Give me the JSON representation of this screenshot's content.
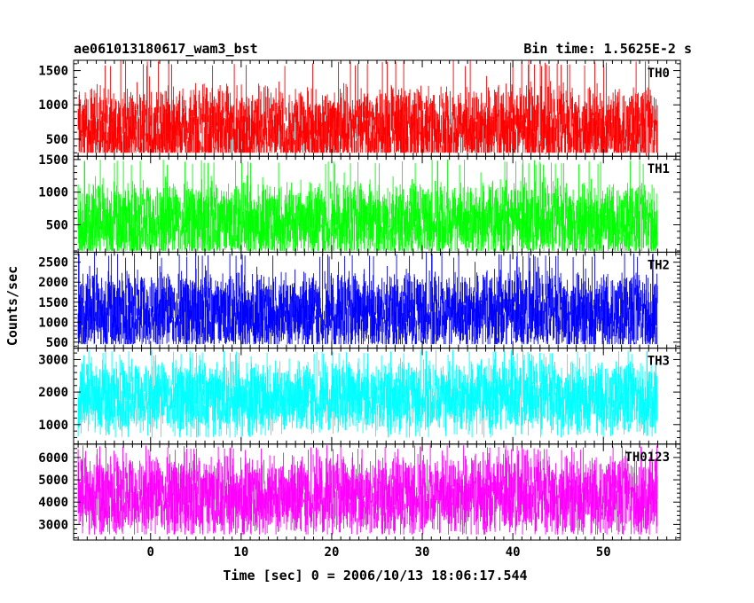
{
  "header": {
    "left": "ae061013180617_wam3_bst",
    "right": "Bin time: 1.5625E-2 s"
  },
  "chart_data": {
    "type": "line",
    "title": "ae061013180617_wam3_bst",
    "subtitle": "Bin time: 1.5625E-2 s",
    "xlabel": "Time [sec] 0 = 2006/10/13 18:06:17.544",
    "ylabel": "Counts/sec",
    "xlim": [
      -8.5,
      58.5
    ],
    "x_range_data": [
      -8,
      56
    ],
    "xticks": [
      0,
      10,
      20,
      30,
      40,
      50
    ],
    "xtick_labels": [
      "0",
      "10",
      "20",
      "30",
      "40",
      "50"
    ],
    "grid": false,
    "legend": "none",
    "panels": [
      {
        "name": "TH0",
        "color": "#ff0000",
        "ylim": [
          250,
          1650
        ],
        "yticks": [
          500,
          1000,
          1500
        ],
        "ytick_labels": [
          "500",
          "1000",
          "1500"
        ],
        "series_stats": {
          "mean": 650,
          "amplitude": 580,
          "min": 300,
          "max": 1650
        }
      },
      {
        "name": "TH1",
        "color": "#00ff00",
        "ylim": [
          80,
          1550
        ],
        "yticks": [
          500,
          1000,
          1500
        ],
        "ytick_labels": [
          "500",
          "1000",
          "1500"
        ],
        "series_stats": {
          "mean": 560,
          "amplitude": 560,
          "min": 100,
          "max": 1500
        }
      },
      {
        "name": "TH2",
        "color": "#0000ff",
        "ylim": [
          350,
          2750
        ],
        "yticks": [
          500,
          1000,
          1500,
          2000,
          2500
        ],
        "ytick_labels": [
          "500",
          "1000",
          "1500",
          "2000",
          "2500"
        ],
        "series_stats": {
          "mean": 1250,
          "amplitude": 950,
          "min": 450,
          "max": 2750
        }
      },
      {
        "name": "TH3",
        "color": "#00ffff",
        "ylim": [
          400,
          3350
        ],
        "yticks": [
          1000,
          2000,
          3000
        ],
        "ytick_labels": [
          "1000",
          "2000",
          "3000"
        ],
        "series_stats": {
          "mean": 1850,
          "amplitude": 1050,
          "min": 600,
          "max": 3300
        }
      },
      {
        "name": "TH0123",
        "color": "#ff00ff",
        "ylim": [
          2300,
          6600
        ],
        "yticks": [
          3000,
          4000,
          5000,
          6000
        ],
        "ytick_labels": [
          "3000",
          "4000",
          "5000",
          "6000"
        ],
        "series_stats": {
          "mean": 4300,
          "amplitude": 1700,
          "min": 2550,
          "max": 6550
        }
      }
    ]
  }
}
